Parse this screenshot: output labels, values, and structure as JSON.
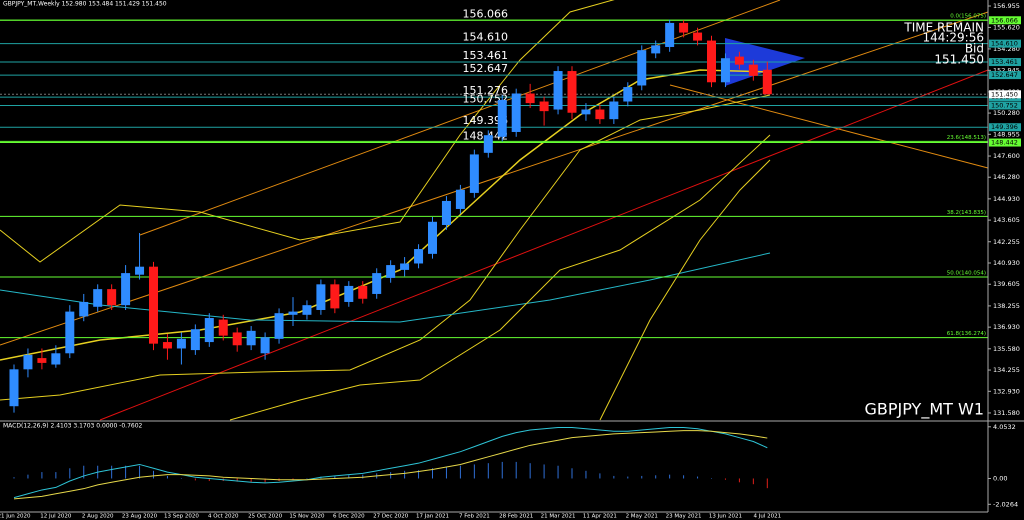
{
  "chart_data": [
    {
      "type": "candlestick",
      "title": "GBPJPY_MT,Weekly  152.980 153.484 151.429 151.450",
      "symbol_label": "GBPJPY_MT W1",
      "time_remain_label": "TIME REMAIN",
      "time_remain": "144:29:56",
      "bid_label": "Bid",
      "bid": {
        "value": 151.45,
        "label": "151.450"
      },
      "up_color": "#2f8cff",
      "down_color": "#ff1a1a",
      "ylim": [
        131.14,
        157.33
      ],
      "yticks": [
        {
          "value": 131.58,
          "label": "131.580"
        },
        {
          "value": 132.93,
          "label": "132.930"
        },
        134.255,
        {
          "value": 135.58,
          "label": "135.580"
        },
        {
          "value": 136.93,
          "label": "136.930"
        },
        138.255,
        139.605,
        {
          "value": 140.93,
          "label": "140.930"
        },
        142.255,
        143.605,
        {
          "value": 144.93,
          "label": "144.930"
        },
        {
          "value": 146.28,
          "label": "146.280"
        },
        {
          "value": 147.6,
          "label": "147.600"
        },
        148.955,
        {
          "value": 150.28,
          "label": "150.280"
        },
        {
          "value": 151.6,
          "label": "151.600"
        },
        152.945,
        {
          "value": 154.28,
          "label": "154.280"
        },
        {
          "value": 155.62,
          "label": "155.620"
        },
        156.955
      ],
      "levels": [
        156.066,
        {
          "value": 154.61,
          "label": "154.610"
        },
        153.461,
        152.647,
        151.276,
        150.752,
        149.396,
        148.442
      ],
      "level_colors": [
        "#66ff33",
        "#1fa3a3",
        "#1fa3a3",
        "#1fa3a3",
        "#1fa3a3",
        "#1fa3a3",
        "#1fa3a3",
        "#66ff33"
      ],
      "fib_levels": [
        {
          "value": 156.075,
          "label": "0.0(156.075)"
        },
        {
          "value": 148.513,
          "label": "23.6(148.513)"
        },
        {
          "value": 143.835,
          "label": "38.2(143.835)"
        },
        {
          "value": 140.054,
          "label": "50.0(140.054)"
        },
        {
          "value": 136.274,
          "label": "61.8(136.274)"
        }
      ],
      "fib_color": "#66ff33",
      "categories": [
        "21 Jun 2020",
        null,
        null,
        "12 Jul 2020",
        null,
        null,
        "2 Aug 2020",
        null,
        null,
        "23 Aug 2020",
        null,
        null,
        "13 Sep 2020",
        null,
        null,
        "4 Oct 2020",
        null,
        null,
        "25 Oct 2020",
        null,
        null,
        "15 Nov 2020",
        null,
        null,
        "6 Dec 2020",
        null,
        null,
        "27 Dec 2020",
        null,
        null,
        "17 Jan 2021",
        null,
        null,
        "7 Feb 2021",
        null,
        null,
        "28 Feb 2021",
        null,
        null,
        "21 Mar 2021",
        null,
        null,
        "11 Apr 2021",
        null,
        null,
        "2 May 2021",
        null,
        null,
        "23 May 2021",
        null,
        null,
        "13 Jun 2021",
        null,
        null,
        "4 Jul 2021"
      ],
      "open": [
        132.0,
        134.3,
        135.0,
        134.6,
        135.3,
        137.6,
        138.2,
        139.3,
        138.3,
        140.2,
        140.7,
        136.0,
        135.6,
        135.5,
        136.0,
        137.4,
        136.6,
        135.8,
        135.3,
        136.2,
        137.7,
        137.7,
        138.0,
        139.6,
        138.5,
        139.5,
        139.0,
        140.0,
        140.5,
        140.9,
        141.5,
        143.3,
        144.3,
        145.3,
        147.8,
        148.8,
        149.1,
        151.5,
        151.0,
        150.5,
        152.9,
        150.2,
        150.5,
        149.9,
        151.0,
        152.0,
        154.0,
        154.4,
        155.9,
        155.3,
        154.8,
        152.2,
        153.8,
        153.3,
        152.98
      ],
      "high": [
        134.6,
        135.6,
        135.6,
        135.8,
        138.3,
        139.0,
        139.6,
        139.6,
        140.8,
        142.8,
        141.0,
        136.5,
        136.6,
        137.1,
        137.8,
        137.7,
        136.9,
        137.0,
        136.6,
        138.1,
        138.8,
        138.6,
        139.9,
        139.9,
        139.8,
        139.8,
        140.6,
        141.1,
        141.3,
        142.1,
        143.8,
        145.1,
        145.8,
        148.0,
        149.2,
        151.4,
        151.8,
        152.1,
        151.3,
        153.2,
        153.2,
        150.9,
        150.8,
        151.3,
        152.2,
        154.5,
        154.8,
        156.1,
        156.07,
        155.6,
        155.1,
        154.0,
        154.1,
        153.6,
        153.484
      ],
      "low": [
        131.6,
        133.8,
        134.3,
        134.4,
        135.0,
        137.3,
        137.9,
        138.0,
        138.0,
        139.9,
        135.5,
        134.9,
        134.6,
        135.2,
        135.7,
        136.1,
        135.4,
        135.5,
        134.9,
        135.9,
        137.0,
        137.4,
        137.7,
        137.8,
        138.2,
        138.4,
        138.7,
        139.7,
        140.1,
        140.6,
        141.2,
        143.0,
        144.0,
        145.0,
        147.5,
        148.5,
        148.8,
        150.6,
        149.5,
        150.2,
        149.9,
        149.8,
        149.6,
        149.6,
        150.7,
        151.7,
        153.7,
        154.1,
        155.0,
        154.5,
        151.9,
        151.9,
        153.0,
        152.3,
        151.429
      ],
      "close": [
        134.3,
        135.2,
        134.7,
        135.3,
        137.9,
        138.5,
        139.3,
        138.3,
        140.3,
        140.7,
        135.9,
        135.6,
        136.2,
        136.8,
        137.5,
        136.4,
        135.8,
        136.7,
        136.3,
        137.8,
        137.9,
        138.3,
        139.6,
        138.1,
        139.5,
        138.7,
        140.3,
        140.8,
        140.9,
        141.8,
        143.5,
        144.8,
        145.5,
        147.7,
        148.9,
        151.1,
        151.5,
        150.9,
        150.4,
        152.9,
        150.3,
        150.5,
        149.9,
        151.0,
        151.9,
        154.2,
        154.5,
        155.9,
        155.3,
        154.8,
        152.2,
        153.7,
        153.3,
        152.6,
        151.45
      ]
    },
    {
      "type": "macd",
      "title": "MACD(12,26,9) 2.4103 3.1703 0.0000 -0.7602",
      "ylim": [
        -2.63,
        4.43
      ],
      "yticks": [
        4.0532,
        {
          "value": 0,
          "label": "0.00"
        },
        -2.0264
      ],
      "histogram": [
        0.1,
        0.3,
        0.5,
        0.5,
        0.8,
        1.0,
        1.0,
        1.0,
        1.0,
        1.0,
        0.6,
        0.2,
        0.0,
        -0.15,
        -0.2,
        -0.2,
        -0.25,
        -0.3,
        -0.3,
        -0.2,
        -0.1,
        0.0,
        0.15,
        0.2,
        0.25,
        0.3,
        0.4,
        0.5,
        0.6,
        0.65,
        0.8,
        0.9,
        1.0,
        1.1,
        1.2,
        1.3,
        1.3,
        1.2,
        1.1,
        1.0,
        0.8,
        0.6,
        0.4,
        0.2,
        0.15,
        0.2,
        0.25,
        0.3,
        0.25,
        0.15,
        0.0,
        -0.1,
        -0.3,
        -0.45,
        -0.7602
      ],
      "up_color": "#2f6fd6",
      "down_color": "#e0201a",
      "series": [
        {
          "color": "#2ec4d6",
          "values": [
            -1.5,
            -1.2,
            -0.9,
            -0.7,
            -0.2,
            0.2,
            0.5,
            0.7,
            0.9,
            1.1,
            0.8,
            0.5,
            0.3,
            0.1,
            0.0,
            -0.1,
            -0.2,
            -0.3,
            -0.35,
            -0.3,
            -0.2,
            -0.1,
            0.1,
            0.2,
            0.3,
            0.4,
            0.6,
            0.8,
            1.0,
            1.2,
            1.5,
            1.8,
            2.1,
            2.5,
            2.9,
            3.3,
            3.6,
            3.8,
            3.9,
            4.0,
            4.0,
            3.9,
            3.8,
            3.7,
            3.7,
            3.8,
            3.9,
            4.0,
            4.0,
            3.9,
            3.7,
            3.5,
            3.2,
            2.9,
            2.4103
          ]
        },
        {
          "color": "#e6d84a",
          "values": [
            -1.6,
            -1.5,
            -1.4,
            -1.2,
            -1.0,
            -0.8,
            -0.5,
            -0.3,
            -0.1,
            0.1,
            0.2,
            0.3,
            0.3,
            0.25,
            0.2,
            0.1,
            0.05,
            0.0,
            -0.05,
            -0.1,
            -0.1,
            -0.1,
            -0.05,
            0.0,
            0.05,
            0.1,
            0.2,
            0.3,
            0.4,
            0.55,
            0.7,
            0.9,
            1.1,
            1.4,
            1.7,
            2.0,
            2.3,
            2.6,
            2.8,
            3.0,
            3.2,
            3.3,
            3.4,
            3.5,
            3.55,
            3.6,
            3.65,
            3.7,
            3.75,
            3.75,
            3.7,
            3.6,
            3.5,
            3.35,
            3.1703
          ]
        }
      ]
    }
  ]
}
